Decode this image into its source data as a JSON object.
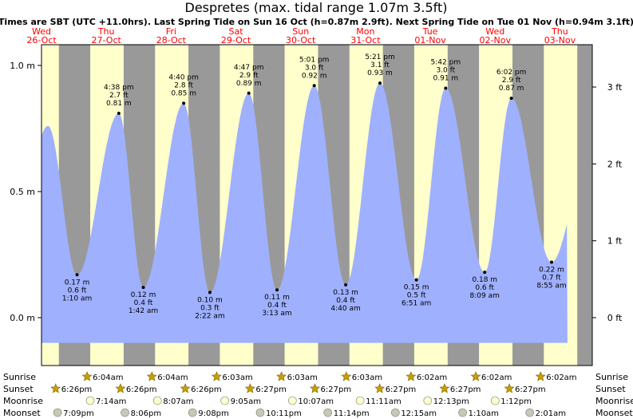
{
  "chart_data": {
    "type": "area",
    "title": "Despretes (max. tidal range 1.07m 3.5ft)",
    "subtitle": "Times are SBT (UTC +11.0hrs). Last Spring Tide on Sun 16 Oct (h=0.87m 2.9ft). Next Spring Tide on Tue 01 Nov (h=0.94m 3.1ft)",
    "ylim_m": [
      -0.19,
      1.1
    ],
    "y_ticks_m": [
      {
        "value": 0.0,
        "label": "0.0 m"
      },
      {
        "value": 0.5,
        "label": "0.5 m"
      },
      {
        "value": 1.0,
        "label": "1.0 m"
      }
    ],
    "y_ticks_ft": [
      {
        "value": 0,
        "label": "0 ft"
      },
      {
        "value": 1,
        "label": "1 ft"
      },
      {
        "value": 2,
        "label": "2 ft"
      },
      {
        "value": 3,
        "label": "3 ft"
      }
    ],
    "days": [
      {
        "dow": "Wed",
        "date": "26-Oct"
      },
      {
        "dow": "Thu",
        "date": "27-Oct"
      },
      {
        "dow": "Fri",
        "date": "28-Oct"
      },
      {
        "dow": "Sat",
        "date": "29-Oct"
      },
      {
        "dow": "Sun",
        "date": "30-Oct"
      },
      {
        "dow": "Mon",
        "date": "31-Oct"
      },
      {
        "dow": "Tue",
        "date": "01-Nov"
      },
      {
        "dow": "Wed",
        "date": "02-Nov"
      },
      {
        "dow": "Thu",
        "date": "03-Nov"
      }
    ],
    "start_hour": 12,
    "hours_span": 204,
    "sunrise": "6:03",
    "sunset": "18:26",
    "tides": [
      {
        "type": "high",
        "t": 14.4,
        "m": 0.76,
        "labeled": false
      },
      {
        "type": "low",
        "t": 25.17,
        "m": 0.17,
        "ft": "0.6 ft",
        "m_label": "0.17 m",
        "time": "1:10 am"
      },
      {
        "type": "high",
        "t": 40.63,
        "m": 0.81,
        "ft": "2.7 ft",
        "m_label": "0.81 m",
        "time": "4:38 pm"
      },
      {
        "type": "low",
        "t": 49.7,
        "m": 0.12,
        "ft": "0.4 ft",
        "m_label": "0.12 m",
        "time": "1:42 am"
      },
      {
        "type": "high",
        "t": 64.67,
        "m": 0.85,
        "ft": "2.8 ft",
        "m_label": "0.85 m",
        "time": "4:40 pm"
      },
      {
        "type": "low",
        "t": 74.37,
        "m": 0.1,
        "ft": "0.3 ft",
        "m_label": "0.10 m",
        "time": "2:22 am"
      },
      {
        "type": "high",
        "t": 88.78,
        "m": 0.89,
        "ft": "2.9 ft",
        "m_label": "0.89 m",
        "time": "4:47 pm"
      },
      {
        "type": "low",
        "t": 99.22,
        "m": 0.11,
        "ft": "0.4 ft",
        "m_label": "0.11 m",
        "time": "3:13 am"
      },
      {
        "type": "high",
        "t": 113.02,
        "m": 0.92,
        "ft": "3.0 ft",
        "m_label": "0.92 m",
        "time": "5:01 pm"
      },
      {
        "type": "low",
        "t": 124.67,
        "m": 0.13,
        "ft": "0.4 ft",
        "m_label": "0.13 m",
        "time": "4:40 am"
      },
      {
        "type": "high",
        "t": 137.35,
        "m": 0.93,
        "ft": "3.1 ft",
        "m_label": "0.93 m",
        "time": "5:21 pm"
      },
      {
        "type": "low",
        "t": 150.85,
        "m": 0.15,
        "ft": "0.5 ft",
        "m_label": "0.15 m",
        "time": "6:51 am"
      },
      {
        "type": "high",
        "t": 161.7,
        "m": 0.91,
        "ft": "3.0 ft",
        "m_label": "0.91 m",
        "time": "5:42 pm"
      },
      {
        "type": "low",
        "t": 176.15,
        "m": 0.18,
        "ft": "0.6 ft",
        "m_label": "0.18 m",
        "time": "8:09 am"
      },
      {
        "type": "high",
        "t": 186.03,
        "m": 0.87,
        "ft": "2.9 ft",
        "m_label": "0.87 m",
        "time": "6:02 pm"
      },
      {
        "type": "low",
        "t": 200.92,
        "m": 0.22,
        "ft": "0.7 ft",
        "m_label": "0.22 m",
        "time": "8:55 am"
      }
    ],
    "bottom_rows": {
      "labels": [
        "Sunrise",
        "Sunset",
        "Moonrise",
        "Moonset"
      ],
      "sunrise": [
        {
          "t": 30.07,
          "label": "6:04am"
        },
        {
          "t": 54.07,
          "label": "6:04am"
        },
        {
          "t": 78.05,
          "label": "6:03am"
        },
        {
          "t": 102.05,
          "label": "6:03am"
        },
        {
          "t": 126.05,
          "label": "6:03am"
        },
        {
          "t": 150.03,
          "label": "6:02am"
        },
        {
          "t": 174.03,
          "label": "6:02am"
        },
        {
          "t": 198.03,
          "label": "6:02am"
        }
      ],
      "sunset": [
        {
          "t": 18.43,
          "label": "6:26pm"
        },
        {
          "t": 42.43,
          "label": "6:26pm"
        },
        {
          "t": 66.43,
          "label": "6:26pm"
        },
        {
          "t": 90.45,
          "label": "6:27pm"
        },
        {
          "t": 114.45,
          "label": "6:27pm"
        },
        {
          "t": 138.45,
          "label": "6:27pm"
        },
        {
          "t": 162.45,
          "label": "6:27pm"
        },
        {
          "t": 186.45,
          "label": "6:27pm"
        }
      ],
      "moonrise": [
        {
          "t": 31.23,
          "label": "7:14am"
        },
        {
          "t": 56.12,
          "label": "8:07am"
        },
        {
          "t": 81.08,
          "label": "9:05am"
        },
        {
          "t": 106.12,
          "label": "10:07am"
        },
        {
          "t": 131.18,
          "label": "11:11am"
        },
        {
          "t": 156.22,
          "label": "12:13pm"
        },
        {
          "t": 181.2,
          "label": "1:12pm"
        }
      ],
      "moonset": [
        {
          "t": 19.15,
          "label": "7:09pm"
        },
        {
          "t": 44.1,
          "label": "8:06pm"
        },
        {
          "t": 69.13,
          "label": "9:08pm"
        },
        {
          "t": 94.18,
          "label": "10:11pm"
        },
        {
          "t": 119.23,
          "label": "11:14pm"
        },
        {
          "t": 144.25,
          "label": "12:15am"
        },
        {
          "t": 169.17,
          "label": "1:10am"
        },
        {
          "t": 194.02,
          "label": "2:01am"
        }
      ]
    }
  },
  "colors": {
    "day_bg": "#ffffcc",
    "night_bg": "#999999",
    "tide_fill": "#9fb0ff",
    "day_label": "#ff0000",
    "sun_icon": "#c8a000",
    "moon_icon": "#ffffcc",
    "moonset_icon": "#c8c8b4"
  }
}
